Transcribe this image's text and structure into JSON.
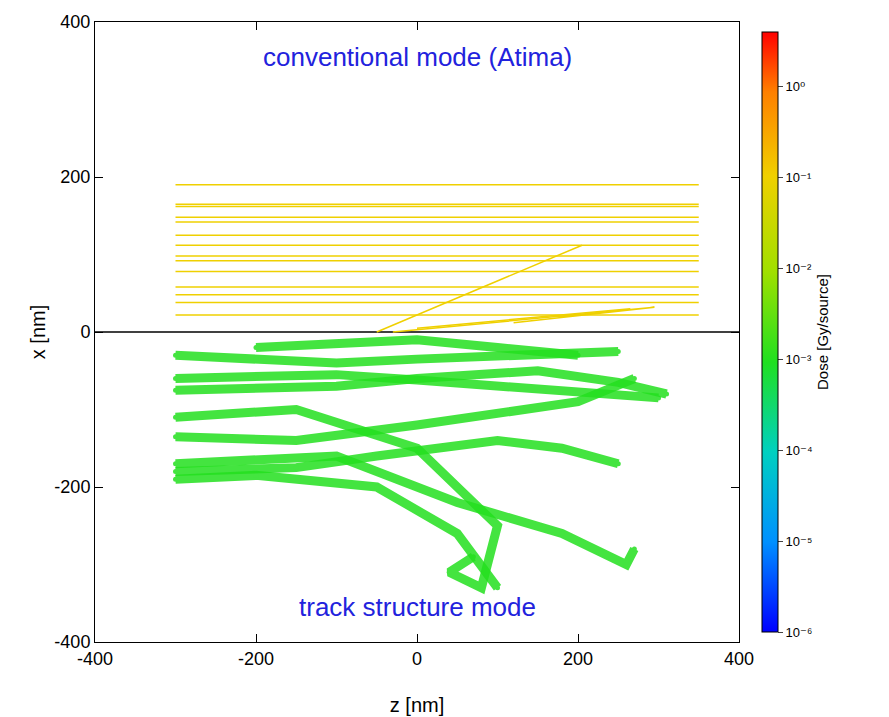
{
  "chart_data": {
    "type": "line",
    "x_label": "z [nm]",
    "y_label": "x [nm]",
    "xlim": [
      -400,
      400
    ],
    "xticks": [
      -400,
      -200,
      0,
      200,
      400
    ],
    "ylim": [
      -400,
      400
    ],
    "yticks": [
      -400,
      -200,
      0,
      200,
      400
    ],
    "grid": false,
    "annotations": [
      {
        "text": "conventional mode (Atima)",
        "x": 0,
        "y": 355,
        "color": "#2222dd"
      },
      {
        "text": "track structure mode",
        "x": 0,
        "y": -355,
        "color": "#2222dd"
      }
    ],
    "colorbar": {
      "title": "Dose [Gy/source]",
      "log": true,
      "range": [
        1e-06,
        4
      ],
      "ticks": [
        {
          "value": 1e-06,
          "label": "10⁻⁶"
        },
        {
          "value": 1e-05,
          "label": "10⁻⁵"
        },
        {
          "value": 0.0001,
          "label": "10⁻⁴"
        },
        {
          "value": 0.001,
          "label": "10⁻³"
        },
        {
          "value": 0.01,
          "label": "10⁻²"
        },
        {
          "value": 0.1,
          "label": "10⁻¹"
        },
        {
          "value": 1,
          "label": "10⁰"
        }
      ]
    },
    "series": [
      {
        "x": [
          -400,
          400
        ],
        "values": [
          0,
          0
        ],
        "color": "#000000"
      },
      {
        "x": [
          -300,
          350
        ],
        "values": [
          22,
          22
        ],
        "dose": 0.1
      },
      {
        "x": [
          -300,
          350
        ],
        "values": [
          38,
          38
        ],
        "dose": 0.1
      },
      {
        "x": [
          -300,
          350
        ],
        "values": [
          48,
          48
        ],
        "dose": 0.1
      },
      {
        "x": [
          -300,
          350
        ],
        "values": [
          58,
          58
        ],
        "dose": 0.1
      },
      {
        "x": [
          -300,
          350
        ],
        "values": [
          78,
          78
        ],
        "dose": 0.1
      },
      {
        "x": [
          -300,
          350
        ],
        "values": [
          92,
          92
        ],
        "dose": 0.1
      },
      {
        "x": [
          -300,
          350
        ],
        "values": [
          98,
          98
        ],
        "dose": 0.1
      },
      {
        "x": [
          -300,
          350
        ],
        "values": [
          112,
          112
        ],
        "dose": 0.1
      },
      {
        "x": [
          -300,
          350
        ],
        "values": [
          125,
          125
        ],
        "dose": 0.1
      },
      {
        "x": [
          -300,
          350
        ],
        "values": [
          142,
          142
        ],
        "dose": 0.1
      },
      {
        "x": [
          -300,
          350
        ],
        "values": [
          148,
          148
        ],
        "dose": 0.1
      },
      {
        "x": [
          -300,
          350
        ],
        "values": [
          162,
          162
        ],
        "dose": 0.1
      },
      {
        "x": [
          -300,
          350
        ],
        "values": [
          165,
          165
        ],
        "dose": 0.1
      },
      {
        "x": [
          -300,
          350
        ],
        "values": [
          190,
          190
        ],
        "dose": 0.1
      },
      {
        "x": [
          -50,
          205
        ],
        "values": [
          0,
          112
        ],
        "dose": 0.1
      },
      {
        "x": [
          -30,
          295,
          120
        ],
        "values": [
          0,
          32,
          12
        ],
        "dose": 0.1
      },
      {
        "x": [
          0,
          265
        ],
        "values": [
          5,
          30
        ],
        "dose": 0.1
      },
      {
        "x": [
          -300,
          -200,
          -100,
          0,
          100,
          200,
          300
        ],
        "values": [
          -60,
          -58,
          -55,
          -62,
          -70,
          -78,
          -85
        ],
        "dose": 0.001,
        "marker": "circle"
      },
      {
        "x": [
          -300,
          -200,
          -100,
          0,
          150,
          250,
          310
        ],
        "values": [
          -75,
          -72,
          -70,
          -60,
          -50,
          -65,
          -80
        ],
        "dose": 0.001,
        "marker": "circle"
      },
      {
        "x": [
          -300,
          -150,
          0,
          100,
          200,
          270
        ],
        "values": [
          -135,
          -140,
          -120,
          -105,
          -90,
          -60
        ],
        "dose": 0.001,
        "marker": "circle"
      },
      {
        "x": [
          -300,
          -150,
          -50,
          100,
          180,
          250
        ],
        "values": [
          -180,
          -175,
          -160,
          -140,
          -150,
          -170
        ],
        "dose": 0.001,
        "marker": "circle"
      },
      {
        "x": [
          -300,
          -100,
          50,
          180,
          260,
          270
        ],
        "values": [
          -170,
          -160,
          -220,
          -260,
          -300,
          -280
        ],
        "dose": 0.001,
        "marker": "circle"
      },
      {
        "x": [
          -300,
          -150,
          0,
          50,
          100,
          80,
          40,
          70
        ],
        "values": [
          -110,
          -100,
          -150,
          -200,
          -250,
          -330,
          -310,
          -290
        ],
        "dose": 0.001,
        "marker": "circle"
      },
      {
        "x": [
          -300,
          -200,
          -100,
          0,
          100,
          250
        ],
        "values": [
          -30,
          -35,
          -40,
          -35,
          -30,
          -25
        ],
        "dose": 0.001,
        "marker": "circle"
      },
      {
        "x": [
          -300,
          -200,
          -50,
          50,
          100
        ],
        "values": [
          -190,
          -185,
          -200,
          -260,
          -330
        ],
        "dose": 0.001,
        "marker": "circle"
      },
      {
        "x": [
          -200,
          -100,
          0,
          100,
          200
        ],
        "values": [
          -20,
          -15,
          -10,
          -20,
          -30
        ],
        "dose": 0.001,
        "marker": "circle"
      }
    ]
  }
}
